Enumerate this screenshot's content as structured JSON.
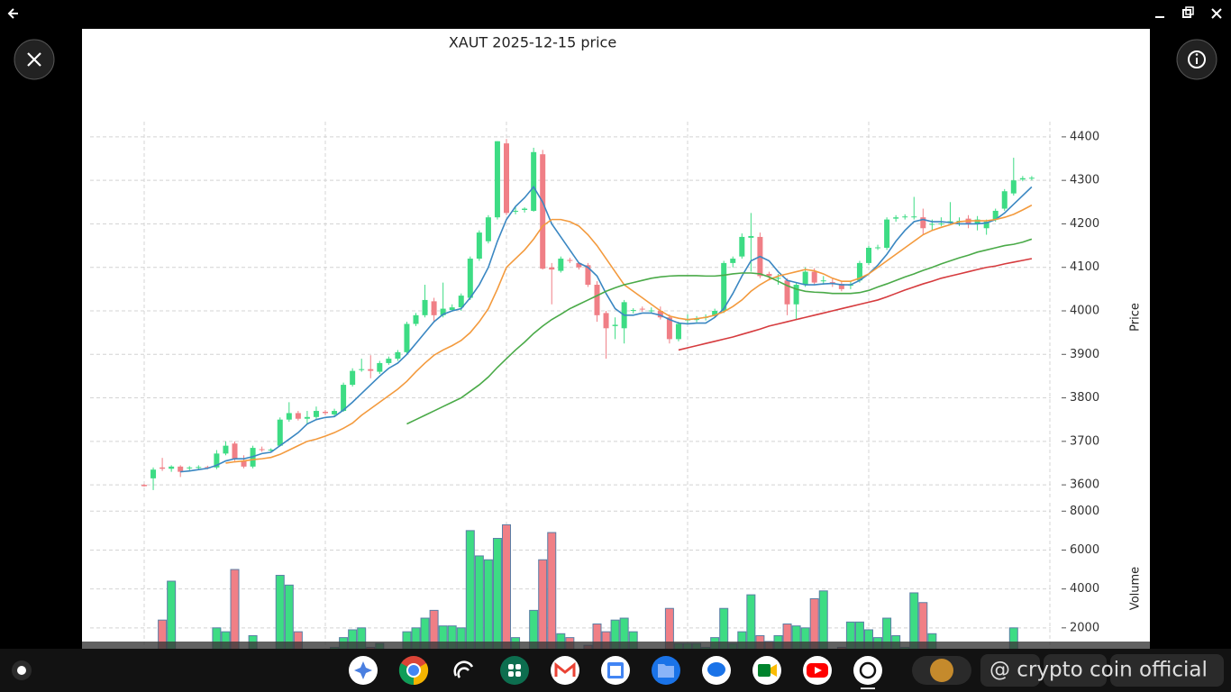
{
  "chart_data": {
    "type": "candlestick",
    "title": "XAUT  2025-12-15  price",
    "ylabel": "Price",
    "volume_label": "Volume",
    "open": [
      3600,
      3615,
      3640,
      3637,
      3642,
      3638,
      3640,
      3641,
      3640,
      3672,
      3695,
      3655,
      3642,
      3682,
      3680,
      3690,
      3750,
      3765,
      3752,
      3756,
      3768,
      3762,
      3770,
      3830,
      3865,
      3866,
      3860,
      3880,
      3890,
      3905,
      3970,
      3990,
      4022,
      3990,
      4002,
      4008,
      4030,
      4120,
      4160,
      4215,
      4385,
      4228,
      4232,
      4230,
      4360,
      4100,
      4092,
      4117,
      4110,
      4105,
      4060,
      3995,
      3965,
      3960,
      4000,
      4005,
      4000,
      4000,
      3985,
      3935,
      3978,
      3980,
      3984,
      3990,
      4000,
      4110,
      4125,
      4168,
      4170,
      4085,
      4075,
      4070,
      4015,
      4060,
      4090,
      4068,
      4066,
      4062,
      4058,
      4070,
      4110,
      4145,
      4145,
      4212,
      4215,
      4215,
      4215,
      4198,
      4200,
      4205,
      4205,
      4212,
      4200,
      4190,
      4210,
      4235,
      4270,
      4302,
      4304
    ],
    "high": [
      3602,
      3640,
      3662,
      3645,
      3645,
      3643,
      3645,
      3644,
      3680,
      3700,
      3700,
      3668,
      3690,
      3688,
      3684,
      3755,
      3790,
      3770,
      3770,
      3780,
      3772,
      3775,
      3835,
      3868,
      3890,
      3898,
      3885,
      3895,
      3910,
      3975,
      3995,
      4060,
      4030,
      4065,
      4015,
      4040,
      4125,
      4185,
      4220,
      4390,
      4395,
      4240,
      4238,
      4375,
      4370,
      4110,
      4125,
      4122,
      4112,
      4110,
      4068,
      4000,
      3985,
      4025,
      4006,
      4010,
      4008,
      4010,
      3992,
      3975,
      3992,
      3988,
      3992,
      4005,
      4115,
      4125,
      4178,
      4225,
      4180,
      4090,
      4085,
      4075,
      4065,
      4100,
      4098,
      4080,
      4075,
      4068,
      4068,
      4115,
      4150,
      4152,
      4215,
      4220,
      4222,
      4262,
      4235,
      4210,
      4215,
      4250,
      4215,
      4220,
      4218,
      4210,
      4235,
      4280,
      4352,
      4310,
      4310
    ],
    "low": [
      3596,
      3588,
      3632,
      3630,
      3618,
      3632,
      3635,
      3636,
      3636,
      3668,
      3655,
      3638,
      3638,
      3676,
      3676,
      3688,
      3745,
      3748,
      3740,
      3750,
      3760,
      3758,
      3768,
      3826,
      3860,
      3845,
      3855,
      3876,
      3885,
      3900,
      3965,
      3985,
      3975,
      3985,
      3998,
      4000,
      4025,
      4115,
      4155,
      4210,
      4220,
      4222,
      4226,
      4228,
      4095,
      4015,
      4088,
      4110,
      4095,
      4055,
      3975,
      3890,
      3935,
      3925,
      3994,
      3998,
      3994,
      3980,
      3925,
      3930,
      3970,
      3974,
      3978,
      3985,
      3995,
      4100,
      4120,
      4090,
      4075,
      4070,
      4060,
      3990,
      3980,
      4055,
      4060,
      4060,
      4055,
      4045,
      4050,
      4065,
      4105,
      4140,
      4140,
      4205,
      4210,
      4210,
      4175,
      4185,
      4195,
      4200,
      4195,
      4190,
      4185,
      4175,
      4205,
      4230,
      4265,
      4298,
      4300
    ],
    "close": [
      3597,
      3635,
      3637,
      3642,
      3630,
      3640,
      3641,
      3640,
      3672,
      3690,
      3660,
      3642,
      3685,
      3680,
      3681,
      3750,
      3765,
      3752,
      3756,
      3770,
      3765,
      3770,
      3830,
      3862,
      3866,
      3862,
      3880,
      3890,
      3905,
      3970,
      3990,
      4025,
      3990,
      4005,
      4008,
      4035,
      4120,
      4180,
      4215,
      4390,
      4225,
      4230,
      4235,
      4365,
      4097,
      4095,
      4120,
      4115,
      4100,
      4060,
      3990,
      3960,
      3968,
      4020,
      4002,
      4004,
      4001,
      3985,
      3935,
      3970,
      3980,
      3981,
      3986,
      4000,
      4110,
      4120,
      4170,
      4172,
      4080,
      4080,
      4076,
      4015,
      4060,
      4090,
      4065,
      4070,
      4064,
      4050,
      4060,
      4110,
      4145,
      4146,
      4210,
      4215,
      4217,
      4217,
      4190,
      4200,
      4201,
      4206,
      4207,
      4200,
      4210,
      4205,
      4230,
      4275,
      4300,
      4305,
      4306
    ],
    "volume": [
      300,
      800,
      2400,
      4400,
      500,
      400,
      500,
      400,
      2000,
      1800,
      5000,
      700,
      1600,
      800,
      600,
      4700,
      4200,
      1800,
      900,
      800,
      700,
      1000,
      1500,
      1900,
      2000,
      1000,
      1200,
      900,
      700,
      1800,
      2000,
      2500,
      2900,
      2100,
      2100,
      2000,
      7000,
      5700,
      5500,
      6600,
      7300,
      1500,
      800,
      2900,
      5500,
      6900,
      1700,
      1500,
      800,
      1100,
      2200,
      1800,
      2400,
      2500,
      1800,
      800,
      600,
      800,
      3000,
      1200,
      1200,
      1200,
      1000,
      1500,
      3000,
      1200,
      1800,
      3700,
      1600,
      1300,
      1600,
      2200,
      2100,
      2000,
      3500,
      3900,
      800,
      1000,
      2300,
      2300,
      1900,
      1500,
      2500,
      1600,
      1000,
      3800,
      3300,
      1700,
      900,
      800,
      700,
      600,
      900,
      700,
      600,
      800,
      2000,
      700,
      600
    ],
    "up_color": "#3ddc84",
    "down_color": "#f07f86",
    "volume_edge_color": "#5b7fa6",
    "moving_averages": [
      {
        "color": "#3a87c2",
        "values": [
          null,
          null,
          null,
          null,
          3630,
          3632,
          3635,
          3638,
          3645,
          3655,
          3660,
          3660,
          3665,
          3672,
          3675,
          3690,
          3705,
          3720,
          3740,
          3750,
          3755,
          3757,
          3772,
          3790,
          3810,
          3830,
          3850,
          3868,
          3880,
          3900,
          3925,
          3950,
          3975,
          3992,
          4000,
          4005,
          4030,
          4060,
          4100,
          4160,
          4210,
          4240,
          4260,
          4285,
          4250,
          4200,
          4170,
          4140,
          4110,
          4100,
          4080,
          4040,
          4005,
          3990,
          3990,
          3995,
          3995,
          3990,
          3980,
          3972,
          3970,
          3972,
          3972,
          3985,
          4005,
          4040,
          4080,
          4115,
          4125,
          4115,
          4090,
          4070,
          4065,
          4060,
          4060,
          4062,
          4063,
          4060,
          4060,
          4070,
          4085,
          4105,
          4130,
          4160,
          4185,
          4205,
          4210,
          4205,
          4205,
          4203,
          4200,
          4200,
          4200,
          4202,
          4210,
          4225,
          4245,
          4265,
          4285
        ]
      },
      {
        "color": "#f39a3d",
        "values": [
          null,
          null,
          null,
          null,
          null,
          null,
          null,
          null,
          null,
          3650,
          3653,
          3655,
          3658,
          3660,
          3663,
          3670,
          3680,
          3690,
          3700,
          3705,
          3712,
          3720,
          3730,
          3742,
          3760,
          3775,
          3790,
          3805,
          3820,
          3838,
          3860,
          3880,
          3898,
          3910,
          3920,
          3932,
          3950,
          3975,
          4005,
          4050,
          4100,
          4120,
          4140,
          4165,
          4195,
          4210,
          4210,
          4205,
          4195,
          4175,
          4150,
          4120,
          4090,
          4060,
          4045,
          4030,
          4015,
          4000,
          3988,
          3983,
          3980,
          3982,
          3985,
          3990,
          3998,
          4010,
          4025,
          4045,
          4060,
          4072,
          4080,
          4085,
          4090,
          4095,
          4092,
          4085,
          4075,
          4068,
          4068,
          4075,
          4085,
          4100,
          4115,
          4130,
          4145,
          4160,
          4175,
          4185,
          4192,
          4198,
          4205,
          4207,
          4207,
          4207,
          4210,
          4215,
          4222,
          4232,
          4243
        ]
      },
      {
        "color": "#4aaa48",
        "values": [
          null,
          null,
          null,
          null,
          null,
          null,
          null,
          null,
          null,
          null,
          null,
          null,
          null,
          null,
          null,
          null,
          null,
          null,
          null,
          null,
          null,
          null,
          null,
          null,
          null,
          null,
          null,
          null,
          null,
          3740,
          3750,
          3760,
          3770,
          3780,
          3790,
          3800,
          3815,
          3830,
          3848,
          3870,
          3890,
          3910,
          3928,
          3948,
          3965,
          3980,
          3992,
          4005,
          4015,
          4025,
          4035,
          4045,
          4053,
          4060,
          4065,
          4070,
          4075,
          4078,
          4080,
          4081,
          4081,
          4081,
          4080,
          4080,
          4082,
          4085,
          4087,
          4087,
          4085,
          4078,
          4068,
          4058,
          4050,
          4045,
          4043,
          4042,
          4040,
          4040,
          4040,
          4042,
          4047,
          4055,
          4062,
          4070,
          4078,
          4085,
          4093,
          4100,
          4108,
          4115,
          4122,
          4128,
          4135,
          4140,
          4145,
          4150,
          4153,
          4158,
          4165
        ]
      },
      {
        "color": "#d63b3e",
        "values": [
          null,
          null,
          null,
          null,
          null,
          null,
          null,
          null,
          null,
          null,
          null,
          null,
          null,
          null,
          null,
          null,
          null,
          null,
          null,
          null,
          null,
          null,
          null,
          null,
          null,
          null,
          null,
          null,
          null,
          null,
          null,
          null,
          null,
          null,
          null,
          null,
          null,
          null,
          null,
          null,
          null,
          null,
          null,
          null,
          null,
          null,
          null,
          null,
          null,
          null,
          null,
          null,
          null,
          null,
          null,
          null,
          null,
          null,
          null,
          3910,
          3915,
          3920,
          3925,
          3930,
          3935,
          3940,
          3946,
          3952,
          3958,
          3965,
          3970,
          3975,
          3980,
          3985,
          3990,
          3995,
          4000,
          4005,
          4010,
          4015,
          4020,
          4025,
          4032,
          4040,
          4048,
          4055,
          4062,
          4068,
          4075,
          4080,
          4085,
          4090,
          4095,
          4100,
          4103,
          4108,
          4112,
          4116,
          4120
        ]
      }
    ],
    "ylim": [
      3565,
      4435
    ],
    "yticks": [
      3600,
      3700,
      3800,
      3900,
      4000,
      4100,
      4200,
      4300,
      4400
    ],
    "volume_ylim": [
      0,
      8430
    ],
    "volume_yticks": [
      2000,
      4000,
      6000,
      8000
    ],
    "grid": true
  },
  "overlay": {
    "watermark": "@ crypto coin official"
  }
}
